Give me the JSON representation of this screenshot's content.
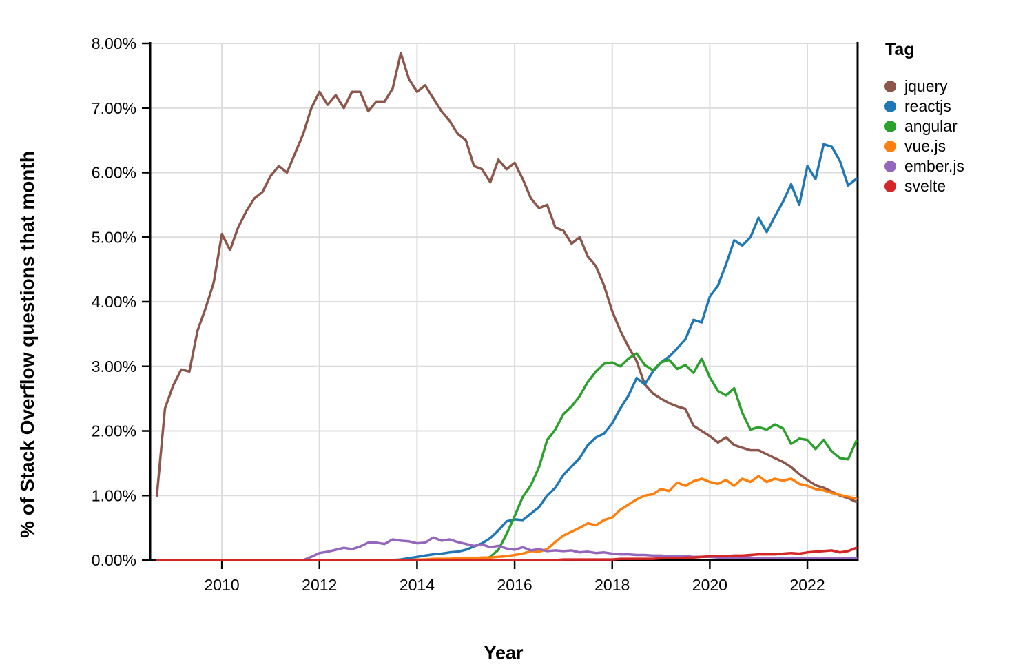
{
  "figure": {
    "y_axis_title": "% of Stack Overflow questions that month",
    "x_axis_title": "Year"
  },
  "legend": {
    "title": "Tag",
    "items": [
      {
        "label": "jquery",
        "color": "#8c564b"
      },
      {
        "label": "reactjs",
        "color": "#1f77b4"
      },
      {
        "label": "angular",
        "color": "#2ca02c"
      },
      {
        "label": "vue.js",
        "color": "#ff7f0e"
      },
      {
        "label": "ember.js",
        "color": "#9467bd"
      },
      {
        "label": "svelte",
        "color": "#d62728"
      }
    ]
  },
  "chart_data": {
    "type": "line",
    "title": "",
    "xlabel": "Year",
    "ylabel": "% of Stack Overflow questions that month",
    "xlim": [
      2008.53,
      2023.03
    ],
    "ylim": [
      0,
      8
    ],
    "grid": true,
    "legend_position": "right",
    "x_tick_values": [
      2010,
      2012,
      2014,
      2016,
      2018,
      2020,
      2022
    ],
    "x_tick_labels": [
      "2010",
      "2012",
      "2014",
      "2016",
      "2018",
      "2020",
      "2022"
    ],
    "y_tick_values": [
      0,
      1,
      2,
      3,
      4,
      5,
      6,
      7,
      8
    ],
    "y_tick_labels": [
      "0.00%",
      "1.00%",
      "2.00%",
      "3.00%",
      "4.00%",
      "5.00%",
      "6.00%",
      "7.00%",
      "8.00%"
    ],
    "x_start": 2008.6667,
    "x_step_years": 0.16667,
    "x_note": "values sampled every 2 months from late 2008 through early 2023, units are percent of Stack Overflow questions that month",
    "series": [
      {
        "name": "jquery",
        "color": "#8c564b",
        "values": [
          1.0,
          2.35,
          2.7,
          2.95,
          2.92,
          3.55,
          3.9,
          4.3,
          5.05,
          4.8,
          5.15,
          5.4,
          5.6,
          5.7,
          5.95,
          6.1,
          6.0,
          6.3,
          6.6,
          7.0,
          7.25,
          7.05,
          7.2,
          7.0,
          7.25,
          7.25,
          6.95,
          7.1,
          7.1,
          7.3,
          7.85,
          7.45,
          7.25,
          7.35,
          7.15,
          6.95,
          6.8,
          6.6,
          6.5,
          6.1,
          6.05,
          5.85,
          6.2,
          6.05,
          6.15,
          5.9,
          5.6,
          5.45,
          5.5,
          5.15,
          5.1,
          4.9,
          5.0,
          4.7,
          4.55,
          4.25,
          3.85,
          3.55,
          3.3,
          3.08,
          2.72,
          2.58,
          2.5,
          2.43,
          2.38,
          2.34,
          2.08,
          2.0,
          1.92,
          1.82,
          1.9,
          1.78,
          1.74,
          1.7,
          1.7,
          1.64,
          1.58,
          1.52,
          1.44,
          1.33,
          1.24,
          1.16,
          1.12,
          1.06,
          1.0,
          0.96,
          0.9
        ]
      },
      {
        "name": "reactjs",
        "color": "#1f77b4",
        "values": [
          0,
          0,
          0,
          0,
          0,
          0,
          0,
          0,
          0,
          0,
          0,
          0,
          0,
          0,
          0,
          0,
          0,
          0,
          0,
          0,
          0,
          0,
          0,
          0,
          0,
          0,
          0,
          0,
          0,
          0,
          0.01,
          0.03,
          0.05,
          0.07,
          0.09,
          0.1,
          0.12,
          0.13,
          0.16,
          0.21,
          0.26,
          0.34,
          0.46,
          0.6,
          0.63,
          0.62,
          0.72,
          0.82,
          1.0,
          1.12,
          1.32,
          1.45,
          1.58,
          1.78,
          1.9,
          1.96,
          2.12,
          2.35,
          2.55,
          2.82,
          2.72,
          2.92,
          3.06,
          3.15,
          3.28,
          3.42,
          3.72,
          3.68,
          4.08,
          4.25,
          4.58,
          4.95,
          4.87,
          5.0,
          5.3,
          5.08,
          5.32,
          5.55,
          5.82,
          5.5,
          6.1,
          5.9,
          6.44,
          6.4,
          6.18,
          5.8,
          5.9
        ]
      },
      {
        "name": "angular",
        "color": "#2ca02c",
        "values": [
          0,
          0,
          0,
          0,
          0,
          0,
          0,
          0,
          0,
          0,
          0,
          0,
          0,
          0,
          0,
          0,
          0,
          0,
          0,
          0,
          0,
          0,
          0,
          0,
          0,
          0,
          0,
          0,
          0,
          0,
          0,
          0,
          0,
          0,
          0,
          0,
          0,
          0,
          0,
          0,
          0.02,
          0.05,
          0.16,
          0.4,
          0.68,
          0.98,
          1.16,
          1.44,
          1.86,
          2.02,
          2.26,
          2.38,
          2.54,
          2.76,
          2.92,
          3.04,
          3.06,
          3.0,
          3.12,
          3.2,
          3.02,
          2.94,
          3.06,
          3.1,
          2.96,
          3.02,
          2.9,
          3.12,
          2.83,
          2.62,
          2.55,
          2.66,
          2.28,
          2.02,
          2.06,
          2.02,
          2.1,
          2.04,
          1.8,
          1.88,
          1.86,
          1.72,
          1.86,
          1.68,
          1.58,
          1.56,
          1.84
        ]
      },
      {
        "name": "vue.js",
        "color": "#ff7f0e",
        "values": [
          0,
          0,
          0,
          0,
          0,
          0,
          0,
          0,
          0,
          0,
          0,
          0,
          0,
          0,
          0,
          0,
          0,
          0,
          0,
          0,
          0,
          0,
          0,
          0,
          0,
          0,
          0,
          0,
          0,
          0,
          0,
          0,
          0.01,
          0.01,
          0.02,
          0.02,
          0.02,
          0.03,
          0.03,
          0.03,
          0.04,
          0.04,
          0.05,
          0.06,
          0.08,
          0.1,
          0.14,
          0.13,
          0.17,
          0.28,
          0.38,
          0.44,
          0.5,
          0.57,
          0.54,
          0.62,
          0.66,
          0.78,
          0.86,
          0.94,
          1.0,
          1.02,
          1.1,
          1.07,
          1.2,
          1.15,
          1.22,
          1.26,
          1.21,
          1.18,
          1.24,
          1.15,
          1.26,
          1.21,
          1.3,
          1.21,
          1.26,
          1.23,
          1.26,
          1.18,
          1.15,
          1.1,
          1.08,
          1.04,
          1.01,
          0.98,
          0.95
        ]
      },
      {
        "name": "ember.js",
        "color": "#9467bd",
        "values": [
          0,
          0,
          0,
          0,
          0,
          0,
          0,
          0,
          0,
          0,
          0,
          0,
          0,
          0,
          0,
          0,
          0,
          0,
          0,
          0.05,
          0.11,
          0.13,
          0.16,
          0.19,
          0.17,
          0.21,
          0.27,
          0.27,
          0.25,
          0.32,
          0.3,
          0.29,
          0.26,
          0.27,
          0.35,
          0.3,
          0.32,
          0.28,
          0.25,
          0.22,
          0.24,
          0.2,
          0.22,
          0.18,
          0.16,
          0.2,
          0.15,
          0.17,
          0.14,
          0.15,
          0.14,
          0.15,
          0.12,
          0.13,
          0.11,
          0.12,
          0.1,
          0.09,
          0.09,
          0.08,
          0.08,
          0.07,
          0.07,
          0.06,
          0.06,
          0.06,
          0.05,
          0.05,
          0.05,
          0.04,
          0.04,
          0.04,
          0.04,
          0.04,
          0.03,
          0.03,
          0.03,
          0.03,
          0.03,
          0.03,
          0.03,
          0.03,
          0.03,
          0.03,
          0.03,
          0.03,
          0.03
        ]
      },
      {
        "name": "svelte",
        "color": "#d62728",
        "values": [
          0,
          0,
          0,
          0,
          0,
          0,
          0,
          0,
          0,
          0,
          0,
          0,
          0,
          0,
          0,
          0,
          0,
          0,
          0,
          0,
          0,
          0,
          0,
          0,
          0,
          0,
          0,
          0,
          0,
          0,
          0,
          0,
          0,
          0,
          0,
          0,
          0,
          0,
          0,
          0,
          0,
          0,
          0,
          0,
          0,
          0,
          0,
          0,
          0,
          0,
          0.01,
          0.01,
          0.01,
          0.01,
          0.01,
          0.01,
          0.01,
          0.02,
          0.02,
          0.02,
          0.02,
          0.02,
          0.03,
          0.03,
          0.03,
          0.04,
          0.04,
          0.05,
          0.06,
          0.06,
          0.06,
          0.07,
          0.07,
          0.08,
          0.09,
          0.09,
          0.09,
          0.1,
          0.11,
          0.1,
          0.12,
          0.13,
          0.14,
          0.15,
          0.12,
          0.14,
          0.19
        ]
      }
    ]
  }
}
